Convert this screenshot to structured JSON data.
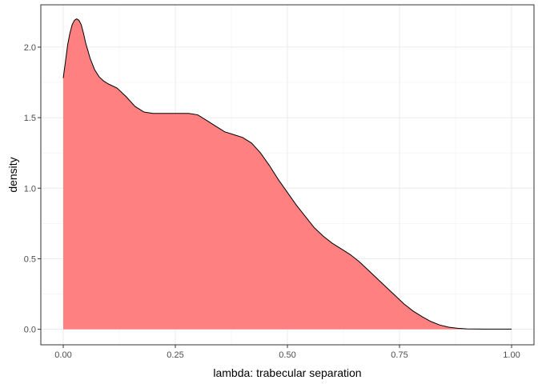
{
  "chart_data": {
    "type": "area",
    "title": "",
    "xlabel": "lambda: trabecular separation",
    "ylabel": "density",
    "xlim": [
      -0.05,
      1.05
    ],
    "ylim": [
      -0.11,
      2.3
    ],
    "x_ticks": [
      0.0,
      0.25,
      0.5,
      0.75,
      1.0
    ],
    "x_tick_labels": [
      "0.00",
      "0.25",
      "0.50",
      "0.75",
      "1.00"
    ],
    "y_ticks": [
      0.0,
      0.5,
      1.0,
      1.5,
      2.0
    ],
    "y_tick_labels": [
      "0.0",
      "0.5",
      "1.0",
      "1.5",
      "2.0"
    ],
    "grid": true,
    "fill_color": "#FF8080",
    "line_color": "#000000",
    "series": [
      {
        "x": [
          0.0,
          0.005,
          0.01,
          0.015,
          0.02,
          0.025,
          0.03,
          0.035,
          0.04,
          0.045,
          0.05,
          0.06,
          0.07,
          0.08,
          0.09,
          0.1,
          0.12,
          0.14,
          0.16,
          0.18,
          0.2,
          0.22,
          0.24,
          0.26,
          0.28,
          0.3,
          0.32,
          0.34,
          0.36,
          0.38,
          0.4,
          0.42,
          0.44,
          0.46,
          0.48,
          0.5,
          0.52,
          0.54,
          0.56,
          0.58,
          0.6,
          0.62,
          0.64,
          0.66,
          0.68,
          0.7,
          0.72,
          0.74,
          0.76,
          0.78,
          0.8,
          0.82,
          0.84,
          0.86,
          0.88,
          0.9,
          0.92,
          0.94,
          0.96,
          0.98,
          1.0
        ],
        "y": [
          1.78,
          1.9,
          2.02,
          2.1,
          2.16,
          2.19,
          2.2,
          2.19,
          2.16,
          2.1,
          2.03,
          1.92,
          1.84,
          1.79,
          1.76,
          1.74,
          1.71,
          1.65,
          1.58,
          1.54,
          1.53,
          1.53,
          1.53,
          1.53,
          1.53,
          1.52,
          1.48,
          1.44,
          1.4,
          1.38,
          1.36,
          1.32,
          1.25,
          1.16,
          1.06,
          0.97,
          0.88,
          0.8,
          0.72,
          0.66,
          0.61,
          0.57,
          0.53,
          0.48,
          0.42,
          0.36,
          0.3,
          0.24,
          0.18,
          0.13,
          0.09,
          0.055,
          0.03,
          0.015,
          0.007,
          0.003,
          0.002,
          0.001,
          0.001,
          0.001,
          0.001
        ]
      }
    ]
  }
}
